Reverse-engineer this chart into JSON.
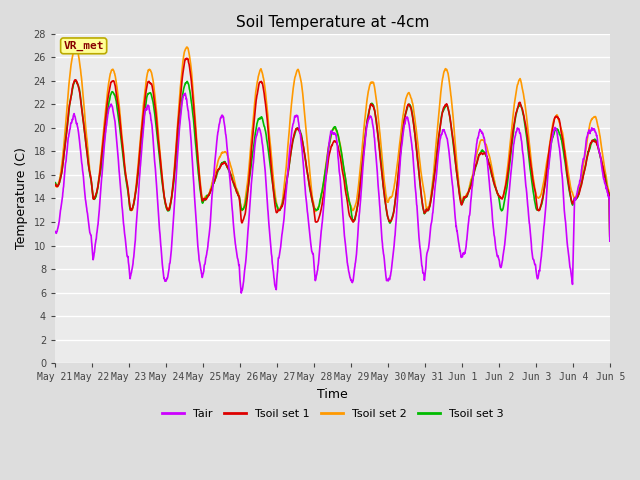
{
  "title": "Soil Temperature at -4cm",
  "xlabel": "Time",
  "ylabel": "Temperature (C)",
  "ylim": [
    0,
    28
  ],
  "yticks": [
    0,
    2,
    4,
    6,
    8,
    10,
    12,
    14,
    16,
    18,
    20,
    22,
    24,
    26,
    28
  ],
  "x_labels": [
    "May 21",
    "May 22",
    "May 23",
    "May 24",
    "May 25",
    "May 26",
    "May 27",
    "May 28",
    "May 29",
    "May 30",
    "May 31",
    "Jun 1",
    "Jun 2",
    "Jun 3",
    "Jun 4",
    "Jun 5"
  ],
  "colors": {
    "Tair": "#cc00ff",
    "Tsoil1": "#dd0000",
    "Tsoil2": "#ff9900",
    "Tsoil3": "#00bb00"
  },
  "legend_labels": [
    "Tair",
    "Tsoil set 1",
    "Tsoil set 2",
    "Tsoil set 3"
  ],
  "bg_color": "#dddddd",
  "plot_bg": "#ebebeb",
  "annotation_text": "VR_met",
  "annotation_bg": "#ffff99",
  "annotation_border": "#bbaa00"
}
